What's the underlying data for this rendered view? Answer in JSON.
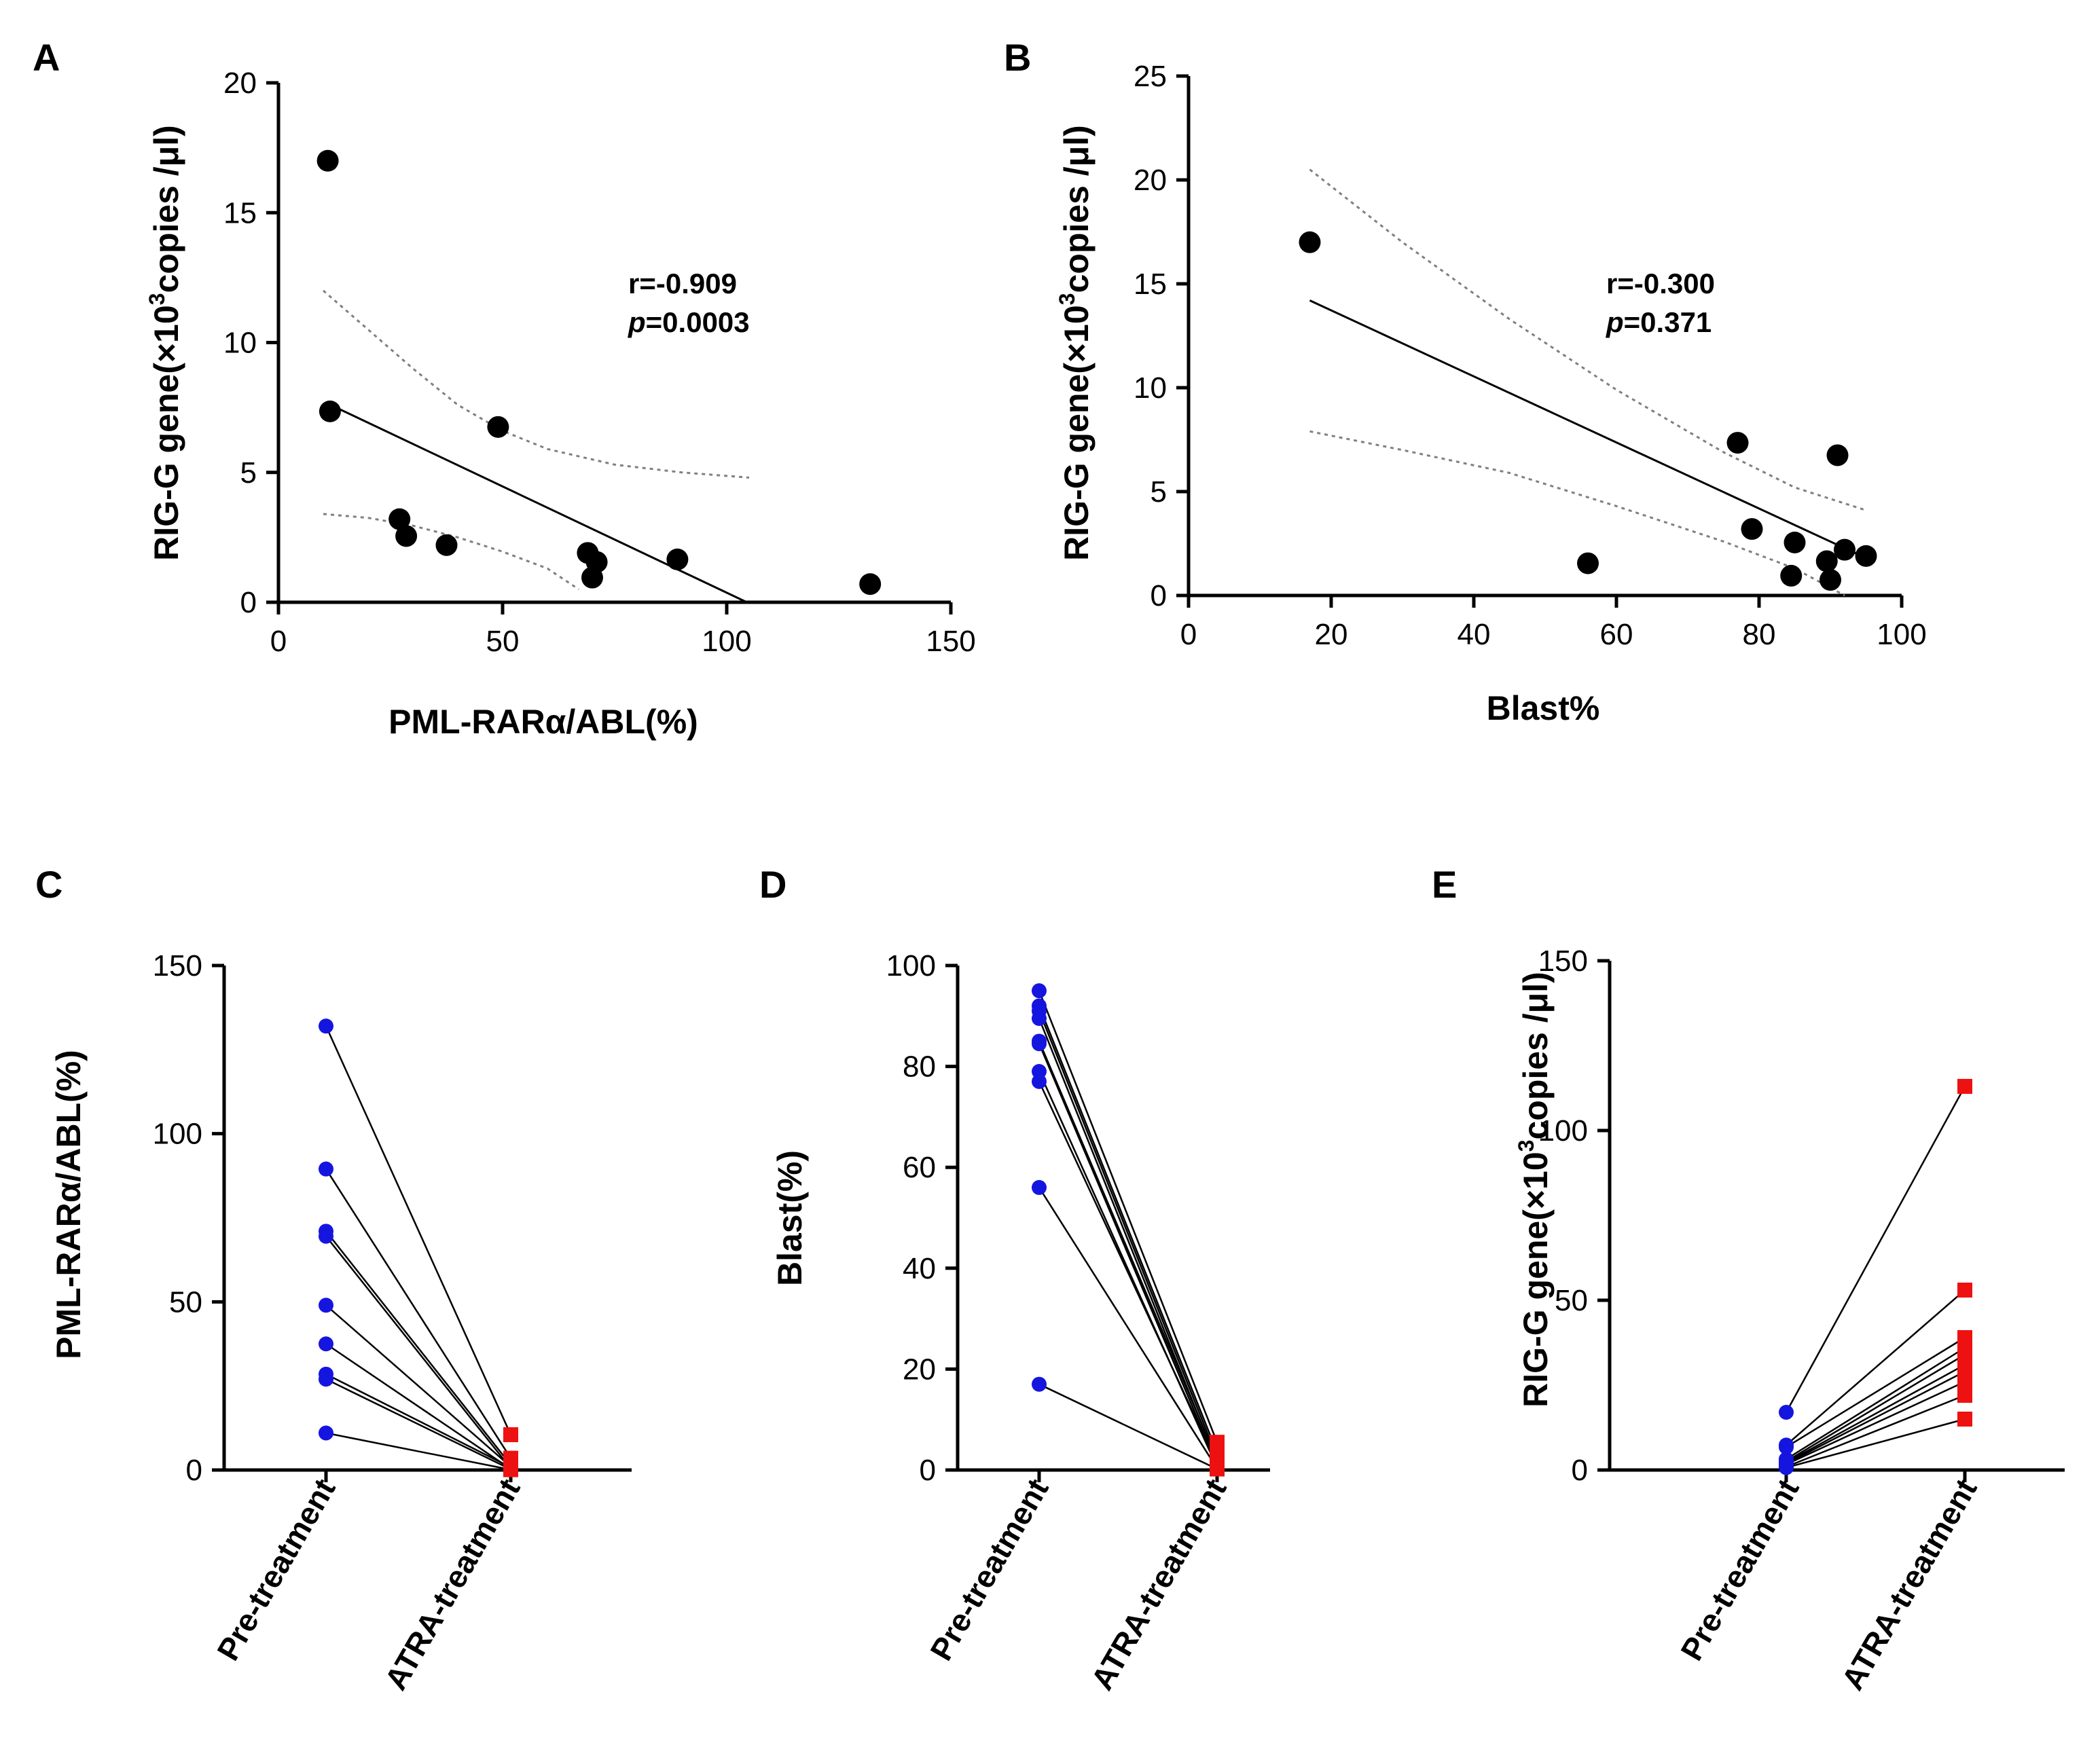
{
  "figure": {
    "colors": {
      "pre": "#1515e0",
      "atra": "#ee1111",
      "ink": "#000000",
      "ci": "#808080"
    }
  },
  "chart_data": [
    {
      "panel": "A",
      "type": "scatter",
      "xlabel": "PML-RARα/ABL(%)",
      "ylabel_main": "RIG-G gene(×10",
      "ylabel_sup": "3",
      "ylabel_tail": "copies /μl)",
      "xlim": [
        0,
        150
      ],
      "ylim": [
        0,
        20
      ],
      "xticks": [
        0,
        50,
        100,
        150
      ],
      "yticks": [
        0,
        5,
        10,
        15,
        20
      ],
      "points": [
        {
          "x": 11,
          "y": 17.0
        },
        {
          "x": 11.5,
          "y": 7.35
        },
        {
          "x": 49,
          "y": 6.75
        },
        {
          "x": 27,
          "y": 3.2
        },
        {
          "x": 28.5,
          "y": 2.55
        },
        {
          "x": 37.5,
          "y": 2.2
        },
        {
          "x": 69,
          "y": 1.9
        },
        {
          "x": 71,
          "y": 1.55
        },
        {
          "x": 70,
          "y": 0.95
        },
        {
          "x": 89,
          "y": 1.65
        },
        {
          "x": 132,
          "y": 0.7
        }
      ],
      "fit_line": [
        {
          "x": 11,
          "y": 7.65
        },
        {
          "x": 104.5,
          "y": 0
        }
      ],
      "ci_upper": [
        {
          "x": 10,
          "y": 12.0
        },
        {
          "x": 20,
          "y": 10.5
        },
        {
          "x": 30,
          "y": 9.0
        },
        {
          "x": 40,
          "y": 7.6
        },
        {
          "x": 50,
          "y": 6.6
        },
        {
          "x": 60,
          "y": 5.9
        },
        {
          "x": 75,
          "y": 5.3
        },
        {
          "x": 90,
          "y": 5.0
        },
        {
          "x": 105,
          "y": 4.8
        }
      ],
      "ci_lower": [
        {
          "x": 10,
          "y": 3.4
        },
        {
          "x": 20,
          "y": 3.25
        },
        {
          "x": 30,
          "y": 2.95
        },
        {
          "x": 40,
          "y": 2.5
        },
        {
          "x": 50,
          "y": 1.95
        },
        {
          "x": 60,
          "y": 1.3
        },
        {
          "x": 67,
          "y": 0.5
        }
      ],
      "annotation": {
        "r": "r=-0.909",
        "p_label": "p",
        "p_value": "=0.0003"
      }
    },
    {
      "panel": "B",
      "type": "scatter",
      "xlabel": "Blast%",
      "ylabel_main": "RIG-G gene(×10",
      "ylabel_sup": "3",
      "ylabel_tail": "copies /μl)",
      "xlim": [
        0,
        100
      ],
      "ylim": [
        0,
        25
      ],
      "xticks": [
        0,
        20,
        40,
        60,
        80,
        100
      ],
      "yticks": [
        0,
        5,
        10,
        15,
        20,
        25
      ],
      "points": [
        {
          "x": 17,
          "y": 17.0
        },
        {
          "x": 56,
          "y": 1.55
        },
        {
          "x": 77,
          "y": 7.35
        },
        {
          "x": 79,
          "y": 3.2
        },
        {
          "x": 85,
          "y": 2.55
        },
        {
          "x": 84.5,
          "y": 0.95
        },
        {
          "x": 89.5,
          "y": 1.65
        },
        {
          "x": 90,
          "y": 0.75
        },
        {
          "x": 91,
          "y": 6.75
        },
        {
          "x": 92,
          "y": 2.2
        },
        {
          "x": 95,
          "y": 1.9
        }
      ],
      "fit_line": [
        {
          "x": 17,
          "y": 14.2
        },
        {
          "x": 95,
          "y": 1.8
        }
      ],
      "ci_upper": [
        {
          "x": 17,
          "y": 20.5
        },
        {
          "x": 30,
          "y": 17.0
        },
        {
          "x": 45,
          "y": 13.3
        },
        {
          "x": 60,
          "y": 9.9
        },
        {
          "x": 75,
          "y": 6.9
        },
        {
          "x": 85,
          "y": 5.2
        },
        {
          "x": 95,
          "y": 4.1
        }
      ],
      "ci_lower": [
        {
          "x": 17,
          "y": 7.9
        },
        {
          "x": 30,
          "y": 7.0
        },
        {
          "x": 45,
          "y": 5.9
        },
        {
          "x": 60,
          "y": 4.3
        },
        {
          "x": 75,
          "y": 2.6
        },
        {
          "x": 85,
          "y": 1.3
        },
        {
          "x": 92,
          "y": 0.0
        }
      ],
      "annotation": {
        "r": "r=-0.300",
        "p_label": "p",
        "p_value": "=0.371"
      }
    },
    {
      "panel": "C",
      "type": "paired",
      "ylabel": "PML-RARα/ABL(%)",
      "categories": [
        "Pre-treatment",
        "ATRA-treatment"
      ],
      "ylim": [
        0,
        150
      ],
      "yticks": [
        0,
        50,
        100,
        150
      ],
      "pre": [
        132,
        89.5,
        71,
        69.5,
        49,
        37.5,
        28.5,
        27,
        11
      ],
      "atra": [
        10.5,
        3.5,
        1.5,
        0.5,
        1.0,
        0.3,
        0.8,
        0.2,
        0.1
      ]
    },
    {
      "panel": "D",
      "type": "paired",
      "ylabel": "Blast(%)",
      "categories": [
        "Pre-treatment",
        "ATRA-treatment"
      ],
      "ylim": [
        0,
        100
      ],
      "yticks": [
        0,
        20,
        40,
        60,
        80,
        100
      ],
      "pre": [
        95,
        92,
        91,
        89.5,
        85,
        84.5,
        79,
        77,
        56,
        17
      ],
      "atra": [
        5.5,
        3.5,
        2.5,
        1.5,
        2.0,
        1.0,
        0.5,
        1.2,
        0.3,
        0.2
      ]
    },
    {
      "panel": "E",
      "type": "paired",
      "ylabel_main": "RIG-G gene(×10",
      "ylabel_sup": "3",
      "ylabel_tail": "copies /μl)",
      "categories": [
        "Pre-treatment",
        "ATRA-treatment"
      ],
      "ylim": [
        0,
        150
      ],
      "yticks": [
        0,
        50,
        100,
        150
      ],
      "pre": [
        17,
        7.35,
        6.75,
        3.2,
        2.55,
        2.2,
        1.9,
        1.65,
        0.95,
        0.7
      ],
      "atra": [
        113,
        53,
        39,
        36,
        34,
        31,
        29,
        26,
        22,
        15
      ]
    }
  ]
}
